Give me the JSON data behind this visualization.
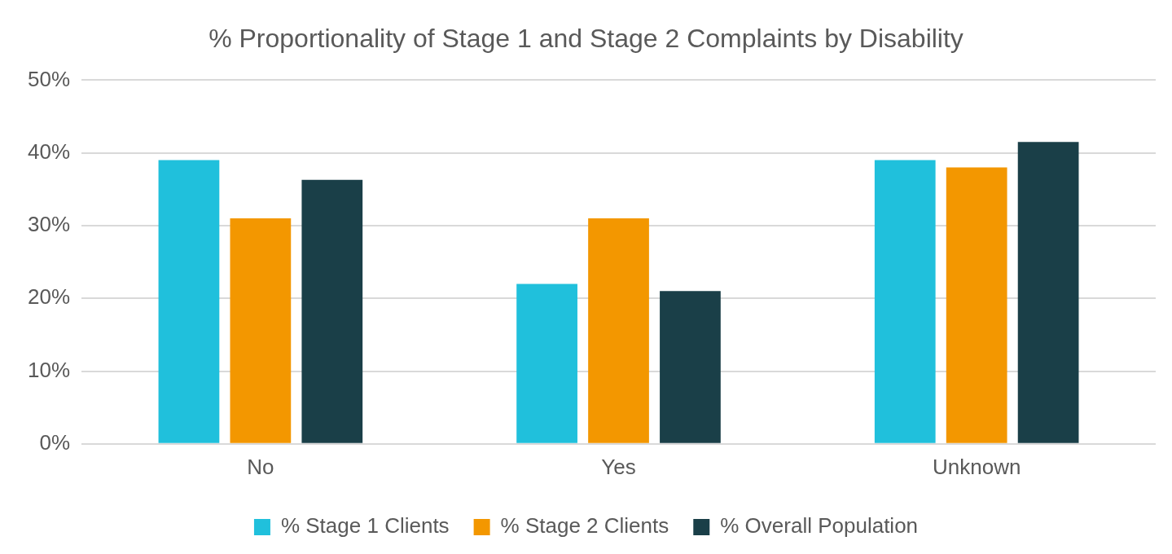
{
  "chart_data": {
    "type": "bar",
    "title": "% Proportionality of Stage 1 and Stage 2 Complaints by Disability",
    "categories": [
      "No",
      "Yes",
      "Unknown"
    ],
    "series": [
      {
        "name": "% Stage 1 Clients",
        "color": "#20c0dc",
        "values": [
          39,
          22,
          39
        ]
      },
      {
        "name": "% Stage 2 Clients",
        "color": "#f39700",
        "values": [
          31,
          31,
          38
        ]
      },
      {
        "name": "% Overall Population",
        "color": "#1a3f48",
        "values": [
          36.3,
          21,
          41.5
        ]
      }
    ],
    "ylim": [
      0,
      50
    ],
    "yticks": [
      {
        "value": 0,
        "label": "0%"
      },
      {
        "value": 10,
        "label": "10%"
      },
      {
        "value": 20,
        "label": "20%"
      },
      {
        "value": 30,
        "label": "30%"
      },
      {
        "value": 40,
        "label": "40%"
      },
      {
        "value": 50,
        "label": "50%"
      }
    ],
    "grid": "y",
    "legend": "bottom"
  }
}
